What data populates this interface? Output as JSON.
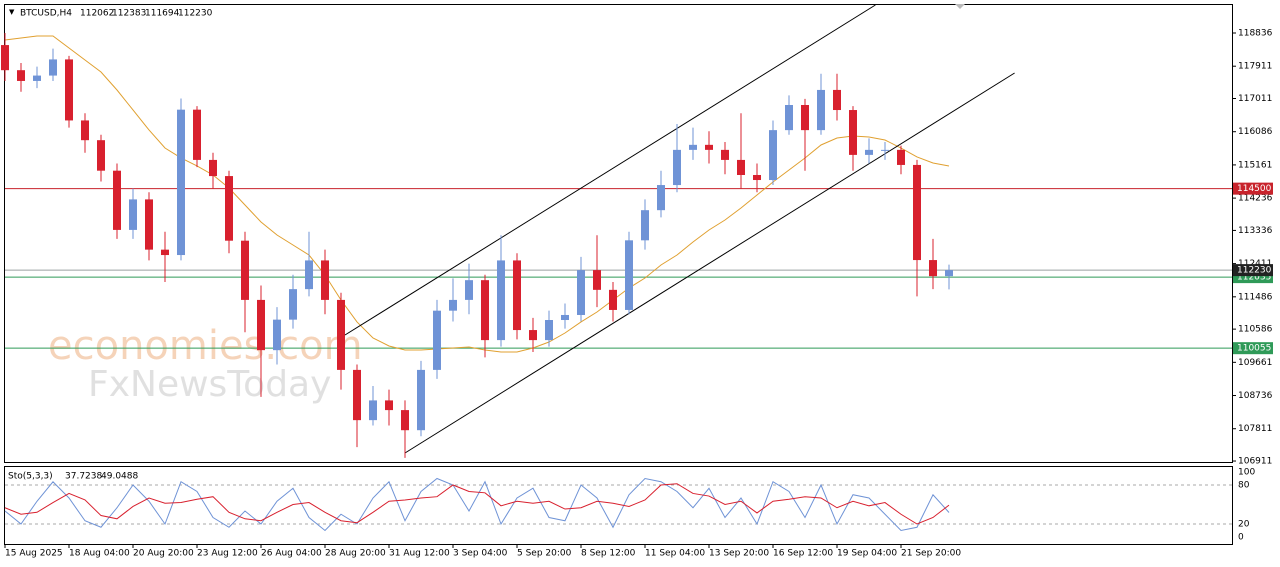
{
  "chart_data": {
    "type": "candlestick",
    "symbol": "BTCUSD,H4",
    "categories": [
      "15 Aug 2025",
      null,
      null,
      null,
      "18 Aug 04:00",
      null,
      null,
      null,
      "20 Aug 20:00",
      null,
      null,
      null,
      "23 Aug 12:00",
      null,
      null,
      null,
      "26 Aug 04:00",
      null,
      null,
      null,
      "28 Aug 20:00",
      null,
      null,
      null,
      "31 Aug 12:00",
      null,
      null,
      null,
      "3 Sep 04:00",
      null,
      null,
      null,
      "5 Sep 20:00",
      null,
      null,
      null,
      "8 Sep 12:00",
      null,
      null,
      null,
      "11 Sep 04:00",
      null,
      null,
      null,
      "13 Sep 20:00",
      null,
      null,
      null,
      "16 Sep 12:00",
      null,
      null,
      null,
      "19 Sep 04:00",
      null,
      null,
      null,
      "21 Sep 20:00",
      null,
      null,
      null
    ],
    "open": [
      118500,
      117800,
      117500,
      117650,
      118100,
      116400,
      115850,
      115000,
      113350,
      114200,
      112800,
      112650,
      116700,
      115300,
      114850,
      113050,
      111400,
      110000,
      110850,
      111700,
      112500,
      111400,
      109450,
      108050,
      108600,
      108330,
      107770,
      109450,
      111100,
      111400,
      111950,
      110280,
      112500,
      110560,
      110280,
      110840,
      110980,
      112230,
      111680,
      111120,
      113060,
      113900,
      114600,
      115580,
      115720,
      115580,
      115300,
      114880,
      114740,
      116130,
      116830,
      116130,
      117250,
      116690,
      115440,
      115580,
      115580,
      115160,
      112510,
      112062
    ],
    "high": [
      118836,
      118000,
      117900,
      118400,
      118200,
      116600,
      116000,
      115200,
      114500,
      114400,
      113300,
      117011,
      116800,
      115500,
      115000,
      113300,
      111800,
      111200,
      112100,
      113300,
      112800,
      111600,
      109600,
      109000,
      108900,
      108600,
      109700,
      111400,
      112000,
      112411,
      112100,
      113200,
      112700,
      110900,
      111100,
      111300,
      112600,
      113200,
      111900,
      113300,
      114200,
      115000,
      116300,
      116200,
      116100,
      115800,
      116600,
      115200,
      116400,
      117100,
      117000,
      117700,
      117700,
      116800,
      115900,
      115800,
      115700,
      115300,
      113100,
      112383
    ],
    "low": [
      117500,
      117200,
      117300,
      117500,
      116200,
      115500,
      114700,
      113100,
      113100,
      112500,
      111900,
      112500,
      115100,
      114500,
      112700,
      110500,
      108700,
      109600,
      110600,
      111500,
      111000,
      108900,
      107300,
      107900,
      107900,
      107000,
      107600,
      109200,
      110800,
      111000,
      109800,
      110100,
      110300,
      109950,
      110100,
      110600,
      110800,
      111200,
      110800,
      111000,
      112800,
      113700,
      114400,
      115300,
      115200,
      114900,
      114500,
      114400,
      114600,
      116000,
      115000,
      116000,
      116400,
      115000,
      115200,
      115300,
      114900,
      111500,
      111700,
      111694
    ],
    "close": [
      117800,
      117500,
      117650,
      118100,
      116400,
      115850,
      115000,
      113350,
      114200,
      112800,
      112650,
      116700,
      115300,
      114850,
      113050,
      111400,
      110000,
      110850,
      111700,
      112500,
      111400,
      109450,
      108050,
      108600,
      108330,
      107770,
      109450,
      111100,
      111400,
      111950,
      110280,
      112500,
      110560,
      110280,
      110840,
      110980,
      112230,
      111680,
      111120,
      113060,
      113900,
      114600,
      115580,
      115720,
      115580,
      115300,
      114880,
      114740,
      116130,
      116830,
      116130,
      117250,
      116690,
      115440,
      115580,
      115580,
      115160,
      112510,
      112062,
      112230
    ],
    "bull_color": "#6f93d6",
    "bear_color": "#d8202e",
    "ma": {
      "color": "#e0a030",
      "values": [
        118641,
        118697,
        118753,
        118753,
        118418,
        118084,
        117750,
        117248,
        116691,
        116134,
        115632,
        115354,
        115131,
        114880,
        114518,
        114044,
        113571,
        113208,
        112930,
        112651,
        112094,
        111397,
        110785,
        110339,
        110116,
        110005,
        110005,
        110032,
        110060,
        110088,
        110005,
        109949,
        109949,
        110060,
        110227,
        110478,
        110785,
        111063,
        111397,
        111732,
        112010,
        112373,
        112651,
        113013,
        113348,
        113626,
        113961,
        114323,
        114685,
        115019,
        115354,
        115716,
        115911,
        115967,
        115939,
        115855,
        115632,
        115382,
        115214,
        115131
      ]
    },
    "trendlines": [
      {
        "color": "#000000",
        "x": [
          21.25,
          54.4
        ],
        "y": [
          110422,
          119616
        ]
      },
      {
        "color": "#000000",
        "x": [
          25,
          63.1
        ],
        "y": [
          107135,
          117722
        ]
      }
    ],
    "levels": [
      {
        "value": 114500,
        "color": "#c8232c"
      },
      {
        "value": 112035,
        "color": "#2f9a58"
      },
      {
        "value": 110055,
        "color": "#2f9a58"
      }
    ],
    "ylim": [
      106884,
      119644
    ],
    "yticks": [
      118836,
      117911,
      117011,
      116086,
      115161,
      114236,
      113336,
      112411,
      111486,
      110586,
      109661,
      108736,
      107811,
      106911
    ],
    "watermark": [
      "economies.com",
      "FxNewsToday"
    ],
    "stochastic": {
      "name": "Sto(5,3,3)",
      "ylim": [
        0,
        100
      ],
      "yticks": [
        100,
        80,
        20,
        0
      ],
      "series": [
        {
          "color": "#6f93d6",
          "values": [
            40,
            20,
            55,
            85,
            60,
            25,
            15,
            45,
            80,
            55,
            20,
            85,
            70,
            30,
            15,
            40,
            20,
            55,
            75,
            30,
            10,
            35,
            20,
            60,
            85,
            25,
            70,
            90,
            80,
            40,
            85,
            20,
            60,
            75,
            30,
            25,
            80,
            60,
            15,
            65,
            90,
            85,
            70,
            45,
            75,
            30,
            60,
            20,
            85,
            70,
            30,
            80,
            20,
            65,
            60,
            35,
            10,
            15,
            65,
            37.7238
          ]
        },
        {
          "color": "#d8202e",
          "values": [
            45,
            35,
            38,
            53,
            67,
            57,
            33,
            28,
            47,
            60,
            52,
            53,
            58,
            62,
            38,
            28,
            25,
            38,
            50,
            53,
            38,
            25,
            22,
            38,
            55,
            57,
            60,
            62,
            80,
            70,
            68,
            48,
            55,
            52,
            55,
            43,
            45,
            55,
            52,
            47,
            57,
            80,
            82,
            67,
            63,
            50,
            55,
            37,
            55,
            58,
            62,
            60,
            45,
            55,
            48,
            53,
            35,
            20,
            30,
            49.0488
          ]
        }
      ]
    }
  }
}
